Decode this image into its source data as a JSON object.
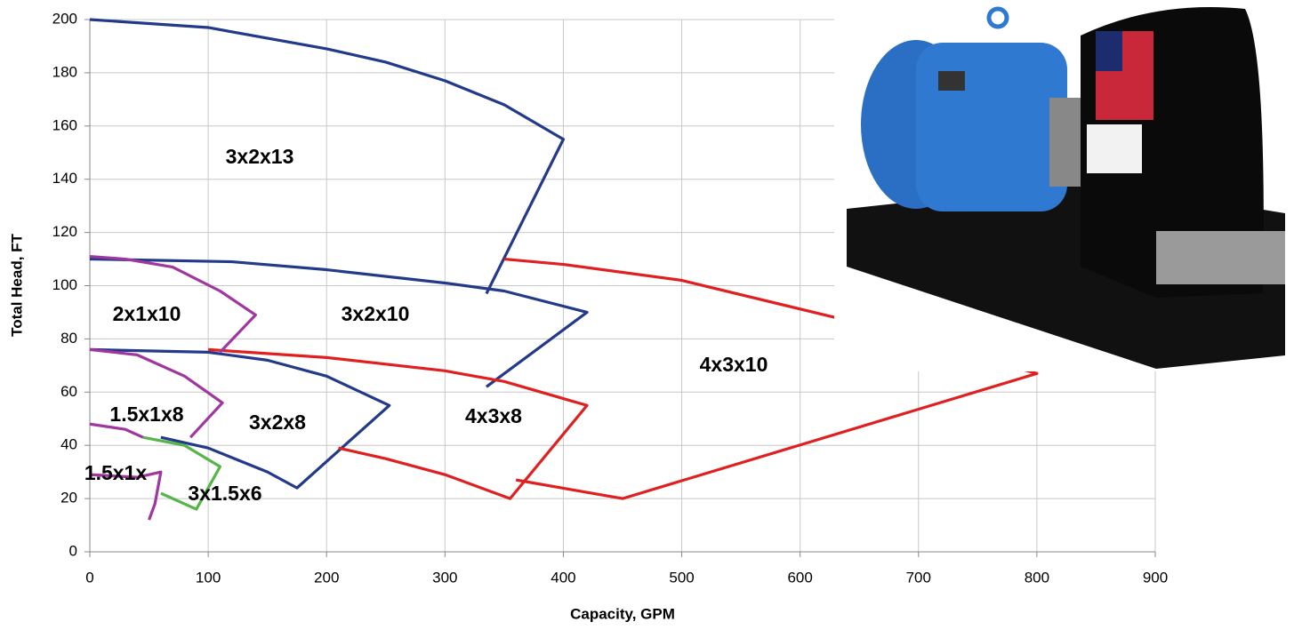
{
  "chart_data": {
    "type": "line",
    "x_label": "Capacity, GPM",
    "y_label": "Total Head, FT",
    "xlim": [
      0,
      900
    ],
    "xticks": [
      0,
      100,
      200,
      300,
      400,
      500,
      600,
      700,
      800,
      900
    ],
    "ylim": [
      0,
      200
    ],
    "yticks": [
      0,
      20,
      40,
      60,
      80,
      100,
      120,
      140,
      160,
      180,
      200
    ],
    "grid": true,
    "series": [
      {
        "name": "3x2x13",
        "color": "#233a8b",
        "x": [
          0,
          100,
          200,
          250,
          300,
          350,
          400,
          335
        ],
        "values": [
          200,
          197,
          189,
          184,
          177,
          168,
          155,
          97
        ]
      },
      {
        "name": "3x2x10",
        "color": "#233a8b",
        "x": [
          0,
          120,
          200,
          300,
          350,
          420,
          335
        ],
        "values": [
          110,
          109,
          106,
          101,
          98,
          90,
          62
        ]
      },
      {
        "name": "3x2x8",
        "color": "#233a8b",
        "x": [
          0,
          100,
          150,
          200,
          253,
          175,
          150,
          100,
          60
        ],
        "values": [
          76,
          75,
          72,
          66,
          55,
          24,
          30,
          39,
          43
        ]
      },
      {
        "name": "4x3x8",
        "color": "#e02020",
        "x": [
          100,
          200,
          300,
          350,
          420,
          355,
          300,
          250,
          210
        ],
        "values": [
          76,
          73,
          68,
          64,
          55,
          20,
          29,
          35,
          39
        ]
      },
      {
        "name": "4x3x10",
        "color": "#e02020",
        "x": [
          350,
          400,
          500,
          630,
          800,
          450,
          360
        ],
        "values": [
          110,
          108,
          102,
          88,
          67,
          20,
          27
        ]
      },
      {
        "name": "2x1x10",
        "color": "#a0379e",
        "x": [
          0,
          30,
          70,
          110,
          140,
          110
        ],
        "values": [
          111,
          110,
          107,
          98,
          89,
          75
        ]
      },
      {
        "name": "1.5x1x8",
        "color": "#a0379e",
        "x": [
          0,
          40,
          80,
          112,
          85
        ],
        "values": [
          76,
          74,
          66,
          56,
          43
        ]
      },
      {
        "name": "1.5x1x",
        "color": "#a0379e",
        "x": [
          0,
          30,
          45,
          null,
          0,
          40,
          60,
          55,
          50
        ],
        "values": [
          48,
          46,
          43,
          null,
          29,
          28,
          30,
          18,
          12
        ]
      },
      {
        "name": "3x1.5x6",
        "color": "#55b548",
        "x": [
          45,
          80,
          110,
          90,
          60
        ],
        "values": [
          43,
          40,
          32,
          16,
          22
        ]
      }
    ]
  }
}
